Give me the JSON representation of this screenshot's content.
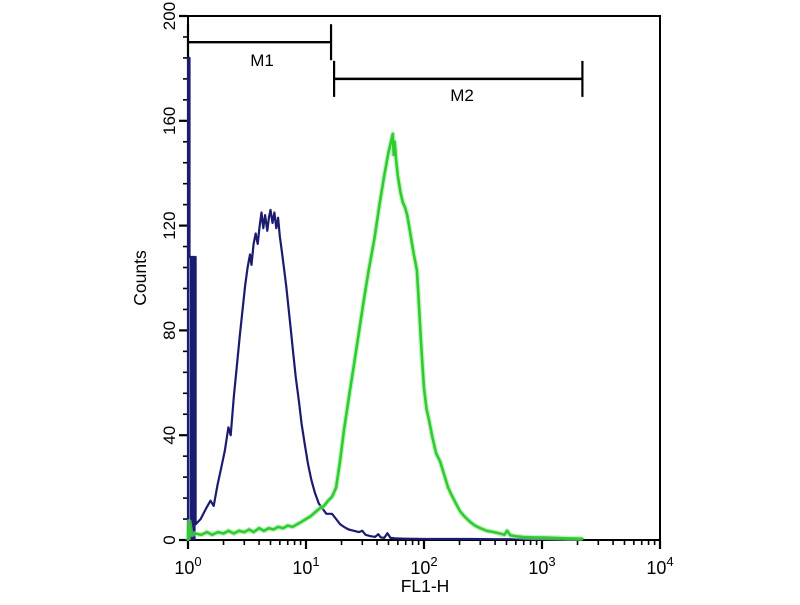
{
  "chart_data": {
    "type": "line",
    "subtype": "flow-cytometry-histogram-overlay",
    "title": "",
    "xlabel": "FL1-H",
    "ylabel": "Counts",
    "x_scale": "log",
    "x_range": [
      1,
      10000
    ],
    "y_range": [
      0,
      200
    ],
    "x_major_tick_labels": [
      "10^0",
      "10^1",
      "10^2",
      "10^3",
      "10^4"
    ],
    "y_major_ticks": [
      0,
      40,
      80,
      120,
      160,
      200
    ],
    "y_minor_tick_step": 8,
    "grid": "off",
    "legend": "none",
    "axis_color": "#000000",
    "markers": [
      {
        "label": "M1",
        "x_from": 1.0,
        "x_to": 16.3,
        "y_counts": 190
      },
      {
        "label": "M2",
        "x_from": 17.3,
        "x_to": 2200,
        "y_counts": 176
      }
    ],
    "series": [
      {
        "name": "blue-curve",
        "color": "#1b1b70",
        "peak": {
          "x": 5.0,
          "counts": 126
        },
        "edge_bar": {
          "x_from": 1.03,
          "x_to": 1.16,
          "counts": 108
        },
        "points": [
          [
            1.0,
            0
          ],
          [
            1.0,
            184
          ],
          [
            1.03,
            184
          ],
          [
            1.03,
            108
          ],
          [
            1.16,
            108
          ],
          [
            1.16,
            6
          ],
          [
            1.28,
            8
          ],
          [
            1.42,
            12
          ],
          [
            1.55,
            15
          ],
          [
            1.65,
            13
          ],
          [
            1.78,
            21
          ],
          [
            1.9,
            27
          ],
          [
            2.05,
            34
          ],
          [
            2.2,
            43
          ],
          [
            2.3,
            40
          ],
          [
            2.45,
            55
          ],
          [
            2.6,
            67
          ],
          [
            2.75,
            78
          ],
          [
            2.9,
            88
          ],
          [
            3.05,
            97
          ],
          [
            3.2,
            104
          ],
          [
            3.35,
            109
          ],
          [
            3.45,
            105
          ],
          [
            3.6,
            113
          ],
          [
            3.75,
            117
          ],
          [
            3.9,
            113
          ],
          [
            4.05,
            120
          ],
          [
            4.2,
            125
          ],
          [
            4.35,
            119
          ],
          [
            4.5,
            124
          ],
          [
            4.7,
            118
          ],
          [
            4.85,
            123
          ],
          [
            5.0,
            126
          ],
          [
            5.2,
            121
          ],
          [
            5.4,
            125
          ],
          [
            5.6,
            119
          ],
          [
            5.8,
            123
          ],
          [
            6.0,
            116
          ],
          [
            6.25,
            110
          ],
          [
            6.5,
            104
          ],
          [
            6.8,
            97
          ],
          [
            7.1,
            89
          ],
          [
            7.45,
            80
          ],
          [
            7.8,
            71
          ],
          [
            8.2,
            62
          ],
          [
            8.7,
            53
          ],
          [
            9.2,
            44
          ],
          [
            9.8,
            36
          ],
          [
            10.4,
            29
          ],
          [
            11.1,
            23
          ],
          [
            11.9,
            18
          ],
          [
            12.8,
            14
          ],
          [
            13.8,
            12
          ],
          [
            14.9,
            10
          ],
          [
            16.6,
            10
          ],
          [
            18,
            8
          ],
          [
            19.5,
            6
          ],
          [
            21,
            5
          ],
          [
            23,
            4
          ],
          [
            25.5,
            3.5
          ],
          [
            28,
            3
          ],
          [
            30,
            3.5
          ],
          [
            32,
            2
          ],
          [
            35,
            1.5
          ],
          [
            38.5,
            1.2
          ],
          [
            41,
            2.2
          ],
          [
            43,
            1
          ],
          [
            46,
            0.8
          ],
          [
            49,
            2.6
          ],
          [
            52,
            0.8
          ],
          [
            57,
            0.6
          ],
          [
            70,
            0.5
          ],
          [
            100,
            0.4
          ],
          [
            160,
            0.4
          ],
          [
            250,
            0.4
          ],
          [
            400,
            0.3
          ],
          [
            700,
            0.3
          ],
          [
            1400,
            0.3
          ]
        ]
      },
      {
        "name": "green-curve",
        "color": "#2ecc2e",
        "glow_color": "#9be89b",
        "peak": {
          "x": 54.4,
          "counts": 155
        },
        "points": [
          [
            1.0,
            0
          ],
          [
            1.02,
            7
          ],
          [
            1.06,
            2
          ],
          [
            1.15,
            2.5
          ],
          [
            1.3,
            2
          ],
          [
            1.45,
            3
          ],
          [
            1.6,
            2
          ],
          [
            1.8,
            3
          ],
          [
            2.0,
            2.5
          ],
          [
            2.2,
            3.5
          ],
          [
            2.45,
            2.5
          ],
          [
            2.7,
            3.5
          ],
          [
            3.0,
            3
          ],
          [
            3.3,
            4
          ],
          [
            3.6,
            3
          ],
          [
            4.0,
            4.5
          ],
          [
            4.4,
            3.5
          ],
          [
            4.85,
            4.5
          ],
          [
            5.3,
            4
          ],
          [
            5.8,
            5
          ],
          [
            6.4,
            4.5
          ],
          [
            7.0,
            5.5
          ],
          [
            7.7,
            5
          ],
          [
            8.4,
            6
          ],
          [
            9.2,
            7
          ],
          [
            10.0,
            8
          ],
          [
            10.9,
            9
          ],
          [
            11.9,
            10.5
          ],
          [
            13.0,
            12
          ],
          [
            14.2,
            13
          ],
          [
            15.4,
            15
          ],
          [
            16.6,
            16.5
          ],
          [
            18,
            20
          ],
          [
            19.4,
            30
          ],
          [
            21,
            42
          ],
          [
            23,
            54
          ],
          [
            25.5,
            67
          ],
          [
            28,
            79
          ],
          [
            31,
            92
          ],
          [
            34,
            103
          ],
          [
            38,
            115
          ],
          [
            42,
            128
          ],
          [
            46,
            139
          ],
          [
            50,
            148
          ],
          [
            52.5,
            152
          ],
          [
            54.4,
            155
          ],
          [
            55.4,
            147
          ],
          [
            56.4,
            152
          ],
          [
            58,
            145
          ],
          [
            60,
            139
          ],
          [
            63,
            133
          ],
          [
            66,
            129
          ],
          [
            69,
            127
          ],
          [
            72,
            124
          ],
          [
            76,
            118
          ],
          [
            82,
            109
          ],
          [
            87,
            103
          ],
          [
            90,
            92
          ],
          [
            94,
            77
          ],
          [
            97,
            67
          ],
          [
            100,
            58
          ],
          [
            105,
            50
          ],
          [
            110,
            46
          ],
          [
            118,
            39
          ],
          [
            127,
            33
          ],
          [
            137,
            30
          ],
          [
            148,
            25
          ],
          [
            160,
            20
          ],
          [
            172,
            17
          ],
          [
            186,
            14
          ],
          [
            202,
            11
          ],
          [
            220,
            9
          ],
          [
            245,
            7
          ],
          [
            270,
            5.5
          ],
          [
            300,
            4.5
          ],
          [
            340,
            3.5
          ],
          [
            390,
            3
          ],
          [
            440,
            2.5
          ],
          [
            480,
            2
          ],
          [
            506,
            3.5
          ],
          [
            540,
            1.8
          ],
          [
            600,
            1.4
          ],
          [
            700,
            1.1
          ],
          [
            850,
            1
          ],
          [
            1050,
            0.9
          ],
          [
            1300,
            0.8
          ],
          [
            1700,
            0.6
          ],
          [
            2200,
            0.5
          ]
        ]
      }
    ]
  }
}
